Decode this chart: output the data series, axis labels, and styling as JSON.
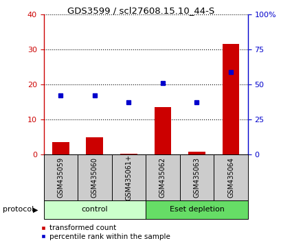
{
  "title": "GDS3599 / scl27608.15.10_44-S",
  "categories": [
    "GSM435059",
    "GSM435060",
    "GSM435061+",
    "GSM435062",
    "GSM435063",
    "GSM435064"
  ],
  "red_values": [
    3.5,
    4.8,
    0.2,
    13.5,
    0.8,
    31.5
  ],
  "blue_values_pct": [
    42,
    42,
    37,
    51,
    37,
    59
  ],
  "left_ylim": [
    0,
    40
  ],
  "right_ylim": [
    0,
    100
  ],
  "left_yticks": [
    0,
    10,
    20,
    30,
    40
  ],
  "right_yticks": [
    0,
    25,
    50,
    75,
    100
  ],
  "right_yticklabels": [
    "0",
    "25",
    "50",
    "75",
    "100%"
  ],
  "groups": [
    {
      "label": "control",
      "indices": [
        0,
        1,
        2
      ],
      "color": "#ccffcc"
    },
    {
      "label": "Eset depletion",
      "indices": [
        3,
        4,
        5
      ],
      "color": "#66dd66"
    }
  ],
  "protocol_label": "protocol",
  "legend_red": "transformed count",
  "legend_blue": "percentile rank within the sample",
  "bar_color": "#cc0000",
  "dot_color": "#0000cc",
  "left_axis_color": "#cc0000",
  "right_axis_color": "#0000cc",
  "grid_color": "black",
  "bg_gray": "#cccccc"
}
